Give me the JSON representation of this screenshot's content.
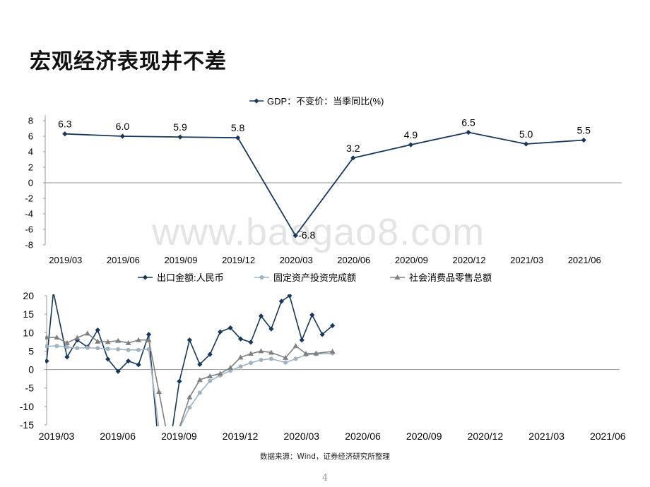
{
  "page": {
    "title": "宏观经济表现并不差",
    "source": "数据来源：Wind，证券经济研究所整理",
    "page_number": "4",
    "watermark": "www.baogao8.com"
  },
  "chart_data": [
    {
      "type": "line",
      "legend_position": "top",
      "categories": [
        "2019/03",
        "2019/06",
        "2019/09",
        "2019/12",
        "2020/03",
        "2020/06",
        "2020/09",
        "2020/12",
        "2021/03",
        "2021/06"
      ],
      "ylim": [
        -8,
        8
      ],
      "yticks": [
        8,
        6,
        4,
        2,
        0,
        -2,
        -4,
        -6,
        -8
      ],
      "series": [
        {
          "name": "GDP：不变价：当季同比(%)",
          "color": "#17375e",
          "values": [
            6.3,
            6.0,
            5.9,
            5.8,
            -6.8,
            3.2,
            4.9,
            6.5,
            5.0,
            5.5
          ],
          "labels": [
            "6.3",
            "6.0",
            "5.9",
            "5.8",
            "-6.8",
            "3.2",
            "4.9",
            "6.5",
            "5.0",
            "5.5"
          ]
        }
      ]
    },
    {
      "type": "line",
      "legend_position": "top",
      "x_tick_labels": [
        "2019/03",
        "2019/06",
        "2019/09",
        "2019/12",
        "2020/03",
        "2020/06",
        "2020/09",
        "2020/12",
        "2021/03",
        "2021/06"
      ],
      "ylim": [
        -15,
        20
      ],
      "yticks": [
        20,
        15,
        10,
        5,
        0,
        -5,
        -10,
        -15
      ],
      "series": [
        {
          "name": "出口金额:人民币",
          "color": "#17375e",
          "marker": "diamond",
          "points": [
            [
              0,
              2.3
            ],
            [
              0.33,
              21.0
            ],
            [
              1,
              3.4
            ],
            [
              1.5,
              8.0
            ],
            [
              2,
              6.1
            ],
            [
              2.5,
              10.7
            ],
            [
              3,
              2.8
            ],
            [
              3.5,
              -0.5
            ],
            [
              4,
              2.3
            ],
            [
              4.5,
              1.3
            ],
            [
              5,
              9.5
            ],
            [
              5.5,
              -22
            ],
            [
              6,
              -22
            ],
            [
              6.5,
              -3.2
            ],
            [
              7,
              8.0
            ],
            [
              7.5,
              1.4
            ],
            [
              8,
              4.1
            ],
            [
              8.5,
              10.2
            ],
            [
              9,
              11.3
            ],
            [
              9.5,
              8.3
            ],
            [
              10,
              7.4
            ],
            [
              10.5,
              14.5
            ],
            [
              11,
              11.0
            ],
            [
              11.5,
              18.5
            ],
            [
              11.9,
              20.0
            ],
            [
              12.5,
              8.0
            ],
            [
              13,
              14.8
            ],
            [
              13.5,
              9.5
            ],
            [
              14,
              11.9
            ]
          ]
        },
        {
          "name": "固定资产投资完成额",
          "color": "#9fb3c3",
          "marker": "circle",
          "points": [
            [
              0,
              6.3
            ],
            [
              0.5,
              6.4
            ],
            [
              1,
              6.1
            ],
            [
              1.5,
              5.8
            ],
            [
              2,
              5.9
            ],
            [
              2.5,
              5.8
            ],
            [
              3,
              5.6
            ],
            [
              3.5,
              5.5
            ],
            [
              4,
              5.3
            ],
            [
              4.5,
              5.3
            ],
            [
              5,
              5.5
            ],
            [
              5.5,
              -16
            ],
            [
              6,
              -24.5
            ],
            [
              6.5,
              -16
            ],
            [
              7,
              -10.3
            ],
            [
              7.5,
              -6.3
            ],
            [
              8,
              -3.1
            ],
            [
              8.5,
              -1.6
            ],
            [
              9,
              -0.3
            ],
            [
              9.5,
              0.8
            ],
            [
              10,
              1.8
            ],
            [
              10.5,
              2.6
            ],
            [
              11,
              2.9
            ],
            [
              11.7,
              1.9
            ],
            [
              12.2,
              2.9
            ],
            [
              12.7,
              4.0
            ],
            [
              13.2,
              4.2
            ],
            [
              14,
              4.4
            ]
          ]
        },
        {
          "name": "社会消费品零售总额",
          "color": "#808080",
          "marker": "triangle",
          "points": [
            [
              0,
              8.7
            ],
            [
              0.5,
              8.7
            ],
            [
              1,
              7.2
            ],
            [
              1.5,
              8.6
            ],
            [
              2,
              9.8
            ],
            [
              2.5,
              7.6
            ],
            [
              3,
              7.5
            ],
            [
              3.5,
              7.8
            ],
            [
              4,
              7.2
            ],
            [
              4.5,
              8.0
            ],
            [
              5,
              8.0
            ],
            [
              5.5,
              -6
            ],
            [
              6,
              -20.5
            ],
            [
              6.5,
              -15.8
            ],
            [
              7,
              -7.5
            ],
            [
              7.5,
              -2.8
            ],
            [
              8,
              -1.8
            ],
            [
              8.5,
              -1.1
            ],
            [
              9,
              0.5
            ],
            [
              9.5,
              3.3
            ],
            [
              10,
              4.3
            ],
            [
              10.5,
              5.0
            ],
            [
              11,
              4.6
            ],
            [
              11.7,
              3.2
            ],
            [
              12.2,
              6.4
            ],
            [
              12.7,
              4.3
            ],
            [
              13.2,
              4.4
            ],
            [
              14,
              4.9
            ]
          ]
        }
      ]
    }
  ]
}
